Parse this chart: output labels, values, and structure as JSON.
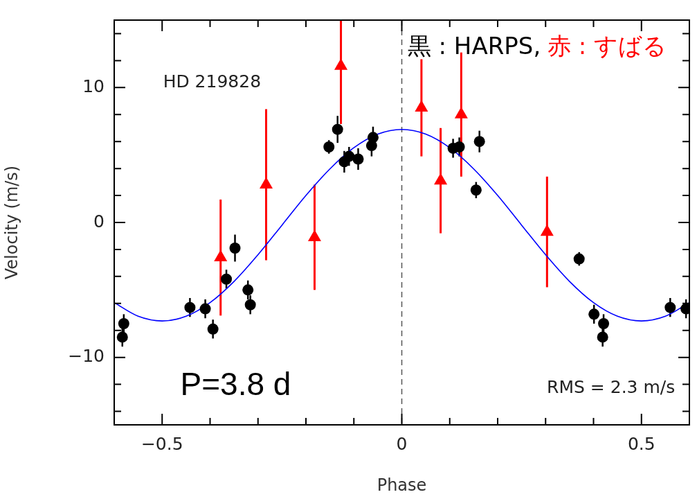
{
  "chart_data": {
    "type": "scatter",
    "xlabel": "Phase",
    "ylabel": "Velocity (m/s)",
    "xlim": [
      -0.6,
      0.6
    ],
    "ylim": [
      -15,
      15
    ],
    "xticks": [
      {
        "value": -0.5,
        "label": "−0.5"
      },
      {
        "value": -0.4,
        "label": null
      },
      {
        "value": -0.3,
        "label": null
      },
      {
        "value": -0.2,
        "label": null
      },
      {
        "value": -0.1,
        "label": null
      },
      0,
      {
        "value": 0.1,
        "label": null
      },
      {
        "value": 0.2,
        "label": null
      },
      {
        "value": 0.3,
        "label": null
      },
      {
        "value": 0.4,
        "label": null
      },
      0.5
    ],
    "yticks": [
      {
        "value": -14,
        "label": null
      },
      {
        "value": -12,
        "label": null
      },
      {
        "value": -10,
        "label": "−10"
      },
      {
        "value": -8,
        "label": null
      },
      {
        "value": -6,
        "label": null
      },
      {
        "value": -4,
        "label": null
      },
      {
        "value": -2,
        "label": null
      },
      0,
      {
        "value": 2,
        "label": null
      },
      {
        "value": 4,
        "label": null
      },
      {
        "value": 6,
        "label": null
      },
      {
        "value": 8,
        "label": null
      },
      10,
      {
        "value": 12,
        "label": null
      },
      {
        "value": 14,
        "label": null
      }
    ],
    "grid": false,
    "legend": false,
    "series": [
      {
        "color": "#000000",
        "marker": "circle",
        "x": [
          -0.583,
          -0.58,
          -0.442,
          -0.41,
          -0.394,
          -0.366,
          -0.348,
          -0.321,
          -0.316,
          -0.152,
          -0.134,
          -0.12,
          -0.11,
          -0.091,
          -0.063,
          -0.06,
          0.107,
          0.12,
          0.155,
          0.162,
          0.37,
          0.401,
          0.419,
          0.421,
          0.56,
          0.593
        ],
        "values": [
          -8.5,
          -7.5,
          -6.3,
          -6.4,
          -7.9,
          -4.2,
          -1.9,
          -5.0,
          -6.1,
          5.6,
          6.9,
          4.5,
          4.9,
          4.7,
          5.7,
          6.3,
          5.5,
          5.6,
          2.4,
          6.0,
          -2.7,
          -6.8,
          -8.5,
          -7.5,
          -6.3,
          -6.4
        ],
        "errors": [
          0.7,
          0.7,
          0.7,
          0.7,
          0.7,
          0.7,
          1.0,
          0.7,
          0.7,
          0.5,
          1.0,
          0.8,
          0.7,
          0.8,
          0.8,
          0.8,
          0.7,
          0.7,
          0.6,
          0.8,
          0.5,
          0.7,
          0.7,
          0.7,
          0.7,
          0.7
        ]
      },
      {
        "color": "#ff0000",
        "marker": "triangle",
        "x": [
          -0.378,
          -0.283,
          -0.182,
          -0.127,
          0.041,
          0.081,
          0.124,
          0.303
        ],
        "values": [
          -2.6,
          2.8,
          -1.1,
          11.6,
          8.5,
          3.1,
          8.0,
          -0.7
        ],
        "errors": [
          4.3,
          5.6,
          3.9,
          [
            7.3,
            15
          ],
          3.6,
          3.9,
          4.6,
          4.1
        ]
      },
      {
        "type": "line",
        "color": "#0000ff",
        "marker": "none",
        "x": [
          -0.6,
          -0.55,
          -0.5,
          -0.45,
          -0.4,
          -0.35,
          -0.3,
          -0.25,
          -0.2,
          -0.15,
          -0.1,
          -0.05,
          0,
          0.05,
          0.1,
          0.15,
          0.2,
          0.25,
          0.3,
          0.35,
          0.4,
          0.45,
          0.5,
          0.55,
          0.6
        ],
        "values": [
          -5.94,
          -6.95,
          -7.3,
          -6.95,
          -5.94,
          -4.37,
          -2.39,
          -0.2,
          2.0,
          3.97,
          5.54,
          6.55,
          6.9,
          6.55,
          5.54,
          3.97,
          2.0,
          -0.2,
          -2.39,
          -4.37,
          -5.94,
          -6.95,
          -7.3,
          -6.95,
          -5.94
        ]
      }
    ],
    "ref_lines": [
      {
        "axis": "x",
        "value": 0,
        "line_style": "dashed",
        "color": "#555555"
      }
    ],
    "annotations": [
      "HD 219828",
      "P=3.8 d",
      "RMS = 2.3 m/s",
      "黒 : HARPS,",
      "赤 : すばる"
    ]
  }
}
